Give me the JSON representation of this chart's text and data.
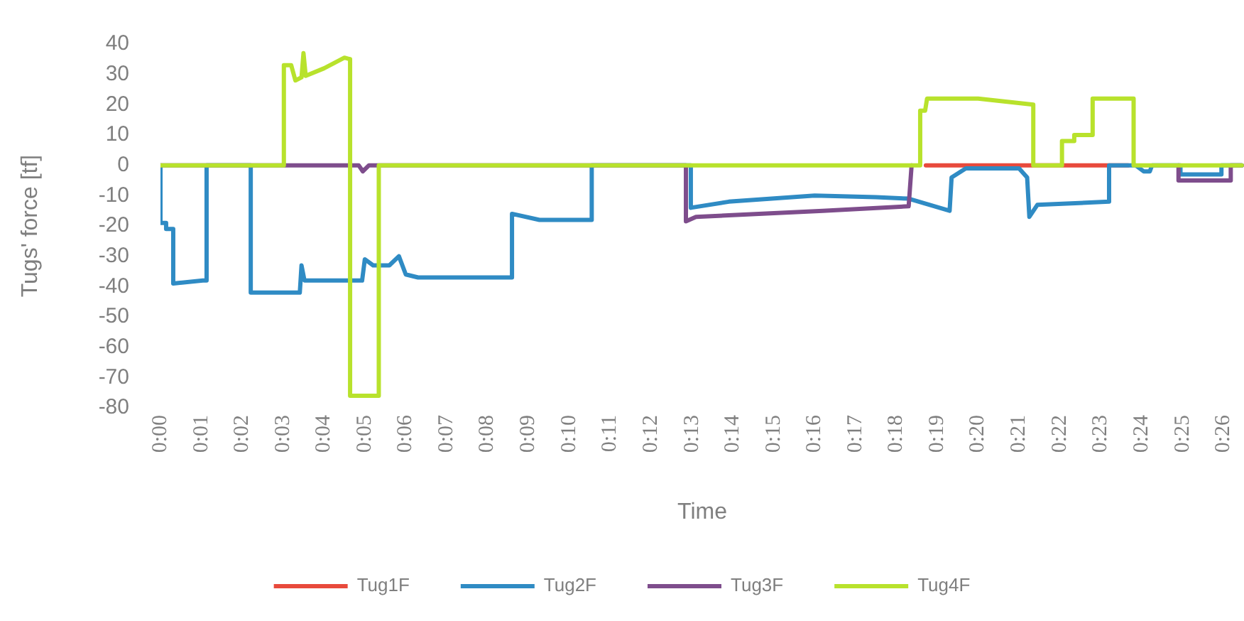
{
  "chart_data": {
    "type": "line",
    "xlabel": "Time",
    "ylabel": "Tugs' force [tf]",
    "xlim": [
      0,
      0.4417
    ],
    "ylim": [
      -80,
      40
    ],
    "xticks": [
      {
        "value": 0,
        "label": "0:00"
      },
      {
        "value": 0.0167,
        "label": "0:01"
      },
      {
        "value": 0.0333,
        "label": "0:02"
      },
      {
        "value": 0.05,
        "label": "0:03"
      },
      {
        "value": 0.0667,
        "label": "0:04"
      },
      {
        "value": 0.0833,
        "label": "0:05"
      },
      {
        "value": 0.1,
        "label": "0:06"
      },
      {
        "value": 0.1167,
        "label": "0:07"
      },
      {
        "value": 0.1333,
        "label": "0:08"
      },
      {
        "value": 0.15,
        "label": "0:09"
      },
      {
        "value": 0.1667,
        "label": "0:10"
      },
      {
        "value": 0.1833,
        "label": "0:11"
      },
      {
        "value": 0.2,
        "label": "0:12"
      },
      {
        "value": 0.2167,
        "label": "0:13"
      },
      {
        "value": 0.2333,
        "label": "0:14"
      },
      {
        "value": 0.25,
        "label": "0:15"
      },
      {
        "value": 0.2667,
        "label": "0:16"
      },
      {
        "value": 0.2833,
        "label": "0:17"
      },
      {
        "value": 0.3,
        "label": "0:18"
      },
      {
        "value": 0.3167,
        "label": "0:19"
      },
      {
        "value": 0.3333,
        "label": "0:20"
      },
      {
        "value": 0.35,
        "label": "0:21"
      },
      {
        "value": 0.3667,
        "label": "0:22"
      },
      {
        "value": 0.3833,
        "label": "0:23"
      },
      {
        "value": 0.4,
        "label": "0:24"
      },
      {
        "value": 0.4167,
        "label": "0:25"
      },
      {
        "value": 0.4333,
        "label": "0:26"
      }
    ],
    "yticks": [
      40,
      30,
      20,
      10,
      0,
      -10,
      -20,
      -30,
      -40,
      -50,
      -60,
      -70,
      -80
    ],
    "grid": false,
    "legend": "bottom",
    "marker": "none",
    "series": [
      {
        "name": "Tug1F",
        "color": "#e84a3c",
        "x": [
          0.312,
          0.3945
        ],
        "values": [
          0,
          0
        ]
      },
      {
        "name": "Tug2F",
        "color": "#2f8bc4",
        "x": [
          0,
          0,
          0.0023,
          0.0023,
          0.0052,
          0.0052,
          0.0173,
          0.0188,
          0.0188,
          0.0368,
          0.0368,
          0.0568,
          0.0575,
          0.0587,
          0.0822,
          0.0833,
          0.0867,
          0.0933,
          0.0972,
          0.1,
          0.105,
          0.143,
          0.1433,
          0.1545,
          0.1758,
          0.1758,
          0.2162,
          0.2162,
          0.2317,
          0.2667,
          0.2917,
          0.305,
          0.3217,
          0.3225,
          0.3283,
          0.35,
          0.3533,
          0.3542,
          0.3575,
          0.3867,
          0.3867,
          0.3975,
          0.4008,
          0.4033,
          0.4042,
          0.4158,
          0.4158,
          0.4325,
          0.4325,
          0.4408
        ],
        "values": [
          0,
          -19,
          -19,
          -21,
          -21,
          -39,
          -38,
          -38,
          0,
          0,
          -42,
          -42,
          -33,
          -38,
          -38,
          -31,
          -33,
          -33,
          -30,
          -36,
          -37,
          -37,
          -16,
          -18,
          -18,
          0,
          0,
          -14,
          -12,
          -10,
          -10.5,
          -11,
          -15,
          -4,
          -1,
          -1,
          -4,
          -17,
          -13,
          -12,
          0,
          0,
          -2,
          -2,
          0,
          0,
          -3,
          -3,
          0,
          0
        ]
      },
      {
        "name": "Tug3F",
        "color": "#7e4d8c",
        "x": [
          0,
          0.0808,
          0.0825,
          0.085,
          0.2142,
          0.2142,
          0.2183,
          0.2317,
          0.27,
          0.305,
          0.3062,
          0.3065,
          0.415,
          0.415,
          0.4363,
          0.4363,
          0.4408
        ],
        "values": [
          0,
          0,
          -2,
          0,
          0,
          -18.5,
          -17,
          -16.5,
          -15,
          -13.5,
          0,
          null,
          0,
          -5,
          -5,
          0,
          0
        ]
      },
      {
        "name": "Tug4F",
        "color": "#b8e22c",
        "x": [
          0,
          0.0503,
          0.0503,
          0.0533,
          0.055,
          0.0575,
          0.0583,
          0.0592,
          0.0667,
          0.075,
          0.0773,
          0.0773,
          0.089,
          0.089,
          0.3097,
          0.3097,
          0.3117,
          0.3125,
          0.3333,
          0.3558,
          0.3558,
          0.3675,
          0.3675,
          0.3725,
          0.3725,
          0.38,
          0.38,
          0.3967,
          0.3967,
          0.4408
        ],
        "values": [
          0,
          0,
          33,
          33,
          28,
          29,
          37,
          29.5,
          32,
          35.5,
          35,
          -76,
          -76,
          0,
          0,
          18,
          18,
          22,
          22,
          20,
          0,
          0,
          8,
          8,
          10,
          10,
          22,
          22,
          0,
          0
        ]
      }
    ]
  }
}
